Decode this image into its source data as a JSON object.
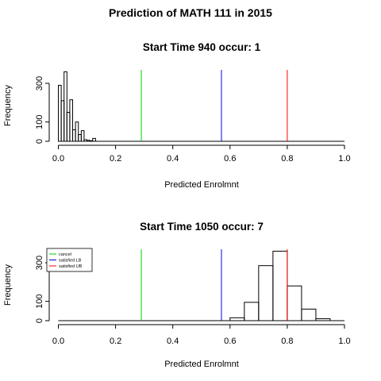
{
  "figure_title": "Prediction of MATH 111 in 2015",
  "chart_data": [
    {
      "type": "bar",
      "title": "Start Time 940 occur: 1",
      "xlabel": "Predicted Enrolmnt",
      "ylabel": "Frequency",
      "xlim": [
        0,
        1
      ],
      "ylim": [
        0,
        370
      ],
      "x_ticks": [
        "0.0",
        "0.2",
        "0.4",
        "0.6",
        "0.8",
        "1.0"
      ],
      "y_ticks": [
        "0",
        "100",
        "300"
      ],
      "y_tick_values": [
        0,
        100,
        300
      ],
      "bin_width": 0.01,
      "bins": [
        {
          "x0": 0.0,
          "x1": 0.01,
          "count": 290
        },
        {
          "x0": 0.01,
          "x1": 0.02,
          "count": 210
        },
        {
          "x0": 0.02,
          "x1": 0.03,
          "count": 360
        },
        {
          "x0": 0.03,
          "x1": 0.04,
          "count": 150
        },
        {
          "x0": 0.04,
          "x1": 0.05,
          "count": 215
        },
        {
          "x0": 0.05,
          "x1": 0.06,
          "count": 60
        },
        {
          "x0": 0.06,
          "x1": 0.07,
          "count": 100
        },
        {
          "x0": 0.07,
          "x1": 0.08,
          "count": 35
        },
        {
          "x0": 0.08,
          "x1": 0.09,
          "count": 55
        },
        {
          "x0": 0.09,
          "x1": 0.1,
          "count": 8
        },
        {
          "x0": 0.1,
          "x1": 0.11,
          "count": 5
        },
        {
          "x0": 0.11,
          "x1": 0.12,
          "count": 3
        },
        {
          "x0": 0.12,
          "x1": 0.13,
          "count": 15
        }
      ],
      "vlines": [
        {
          "name": "cancel",
          "x": 0.29,
          "color": "#00cc00"
        },
        {
          "name": "satisfied LB",
          "x": 0.57,
          "color": "#0000cc"
        },
        {
          "name": "satisfied UB",
          "x": 0.8,
          "color": "#ff0000"
        }
      ],
      "legend": null
    },
    {
      "type": "bar",
      "title": "Start Time 1050 occur: 7",
      "xlabel": "Predicted Enrolmnt",
      "ylabel": "Frequency",
      "xlim": [
        0,
        1
      ],
      "ylim": [
        0,
        370
      ],
      "x_ticks": [
        "0.0",
        "0.2",
        "0.4",
        "0.6",
        "0.8",
        "1.0"
      ],
      "y_ticks": [
        "0",
        "100",
        "300"
      ],
      "y_tick_values": [
        0,
        100,
        300
      ],
      "bin_width": 0.05,
      "bins": [
        {
          "x0": 0.6,
          "x1": 0.65,
          "count": 15
        },
        {
          "x0": 0.65,
          "x1": 0.7,
          "count": 95
        },
        {
          "x0": 0.7,
          "x1": 0.75,
          "count": 285
        },
        {
          "x0": 0.75,
          "x1": 0.8,
          "count": 360
        },
        {
          "x0": 0.8,
          "x1": 0.85,
          "count": 180
        },
        {
          "x0": 0.85,
          "x1": 0.9,
          "count": 60
        },
        {
          "x0": 0.9,
          "x1": 0.95,
          "count": 10
        }
      ],
      "vlines": [
        {
          "name": "cancel",
          "x": 0.29,
          "color": "#00cc00"
        },
        {
          "name": "satisfied LB",
          "x": 0.57,
          "color": "#0000cc"
        },
        {
          "name": "satisfied UB",
          "x": 0.8,
          "color": "#ff0000"
        }
      ],
      "legend": {
        "placement": "top-left",
        "entries": [
          {
            "label": "cancel",
            "color": "#00cc00"
          },
          {
            "label": "satisfied LB",
            "color": "#0000cc"
          },
          {
            "label": "satisfied UB",
            "color": "#ff0000"
          }
        ]
      }
    }
  ]
}
